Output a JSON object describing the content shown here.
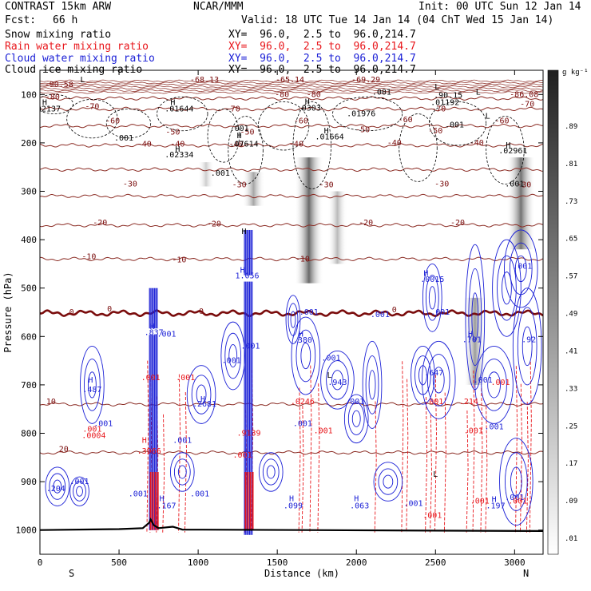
{
  "header": {
    "model": "CONTRAST 15km ARW",
    "center": "NCAR/MMM",
    "init": "Init: 00 UTC Sun 12 Jan 14",
    "fcst_label": "Fcst:",
    "fcst_value": "66 h",
    "valid": "Valid: 18 UTC Tue 14 Jan 14 (04 ChT Wed 15 Jan 14)"
  },
  "fields": [
    {
      "name": "Snow mixing ratio",
      "xy": "XY=  96.0,  2.5 to  96.0,214.7",
      "color": "#000000"
    },
    {
      "name": "Rain water mixing ratio",
      "xy": "XY=  96.0,  2.5 to  96.0,214.7",
      "color": "#e8161b"
    },
    {
      "name": "Cloud water mixing ratio",
      "xy": "XY=  96.0,  2.5 to  96.0,214.7",
      "color": "#1a1fd6"
    },
    {
      "name": "Cloud ice mixing ratio",
      "xy": "XY=  96.0,  2.5 to  96.0,214.7",
      "color": "#000000"
    }
  ],
  "chart_data": {
    "type": "heatmap",
    "xlabel": "Distance (km)",
    "ylabel": "Pressure (hPa)",
    "xlim": [
      0,
      3180
    ],
    "ylim": [
      1050,
      50
    ],
    "y_inverted": true,
    "x_ticks": [
      0,
      500,
      1000,
      1500,
      2000,
      2500,
      3000
    ],
    "y_ticks": [
      100,
      200,
      300,
      400,
      500,
      600,
      700,
      800,
      900,
      1000
    ],
    "x_end_labels": {
      "left": "S",
      "right": "N"
    },
    "colorbar": {
      "unit": "g kg⁻¹",
      "levels": [
        ".01",
        ".09",
        ".17",
        ".25",
        ".33",
        ".41",
        ".49",
        ".57",
        ".65",
        ".73",
        ".81",
        ".89"
      ]
    },
    "temperature_contours": [
      {
        "value": 20,
        "pressure": 840
      },
      {
        "value": 10,
        "pressure": 740
      },
      {
        "value": 0,
        "pressure": 552
      },
      {
        "value": -10,
        "pressure": 440
      },
      {
        "value": -20,
        "pressure": 370
      },
      {
        "value": -30,
        "pressure": 310
      },
      {
        "value": -40,
        "pressure": 255
      },
      {
        "value": -50,
        "pressure": 205
      },
      {
        "value": -60,
        "pressure": 165
      },
      {
        "value": -70,
        "pressure": 130
      },
      {
        "value": -80,
        "pressure": 108
      }
    ],
    "temperature_labels": [
      {
        "text": "-90.58",
        "x": 120,
        "p": 85
      },
      {
        "text": "-68.13",
        "x": 1040,
        "p": 75
      },
      {
        "text": "-65.14",
        "x": 1580,
        "p": 75
      },
      {
        "text": "-69.29",
        "x": 2060,
        "p": 75
      },
      {
        "text": "-86.08",
        "x": 3060,
        "p": 105
      },
      {
        "text": "-80",
        "x": 80,
        "p": 110
      },
      {
        "text": "-70",
        "x": 330,
        "p": 130
      },
      {
        "text": "-70",
        "x": 1220,
        "p": 135
      },
      {
        "text": "-70",
        "x": 2520,
        "p": 135
      },
      {
        "text": "-70",
        "x": 3080,
        "p": 125
      },
      {
        "text": "-80",
        "x": 1530,
        "p": 105
      },
      {
        "text": "-80",
        "x": 1730,
        "p": 105
      },
      {
        "text": "-60",
        "x": 460,
        "p": 160
      },
      {
        "text": "-60",
        "x": 1650,
        "p": 160
      },
      {
        "text": "-60",
        "x": 2310,
        "p": 157
      },
      {
        "text": "-60",
        "x": 2920,
        "p": 160
      },
      {
        "text": "-50",
        "x": 840,
        "p": 183
      },
      {
        "text": "-50",
        "x": 1310,
        "p": 183
      },
      {
        "text": "-50",
        "x": 2040,
        "p": 178
      },
      {
        "text": "-50",
        "x": 2500,
        "p": 180
      },
      {
        "text": "-40",
        "x": 660,
        "p": 208
      },
      {
        "text": "-40",
        "x": 1240,
        "p": 208
      },
      {
        "text": "-40",
        "x": 1620,
        "p": 208
      },
      {
        "text": "-40",
        "x": 2240,
        "p": 205
      },
      {
        "text": "-40",
        "x": 2760,
        "p": 205
      },
      {
        "text": "-40",
        "x": 870,
        "p": 208
      },
      {
        "text": "-30",
        "x": 570,
        "p": 290
      },
      {
        "text": "-30",
        "x": 1260,
        "p": 292
      },
      {
        "text": "-30",
        "x": 1810,
        "p": 292
      },
      {
        "text": "-30",
        "x": 2540,
        "p": 290
      },
      {
        "text": "-30",
        "x": 3060,
        "p": 292
      },
      {
        "text": "-20",
        "x": 380,
        "p": 370
      },
      {
        "text": "-20",
        "x": 1100,
        "p": 373
      },
      {
        "text": "-20",
        "x": 2060,
        "p": 370
      },
      {
        "text": "-20",
        "x": 2640,
        "p": 370
      },
      {
        "text": "-10",
        "x": 310,
        "p": 440
      },
      {
        "text": "-10",
        "x": 880,
        "p": 447
      },
      {
        "text": "-10",
        "x": 1660,
        "p": 445
      },
      {
        "text": "0",
        "x": 200,
        "p": 555
      },
      {
        "text": "0",
        "x": 440,
        "p": 548
      },
      {
        "text": "0",
        "x": 1020,
        "p": 553
      },
      {
        "text": "0",
        "x": 2240,
        "p": 550
      },
      {
        "text": "10",
        "x": 70,
        "p": 740
      },
      {
        "text": "20",
        "x": 150,
        "p": 838
      }
    ],
    "cloud_water_labels": [
      {
        "text": "H",
        "x": 710,
        "p": 585
      },
      {
        "text": ".837",
        "x": 720,
        "p": 597
      },
      {
        "text": ".001",
        "x": 800,
        "p": 600
      },
      {
        "text": "H",
        "x": 1280,
        "p": 468
      },
      {
        "text": "1.056",
        "x": 1310,
        "p": 480
      },
      {
        "text": ".001",
        "x": 1210,
        "p": 655
      },
      {
        "text": "H",
        "x": 1650,
        "p": 600
      },
      {
        "text": ".380",
        "x": 1660,
        "p": 613
      },
      {
        "text": ".001",
        "x": 1700,
        "p": 555
      },
      {
        "text": ".943",
        "x": 1880,
        "p": 700
      },
      {
        "text": ".001",
        "x": 1990,
        "p": 740
      },
      {
        "text": "H",
        "x": 2440,
        "p": 475
      },
      {
        "text": ".0015",
        "x": 2480,
        "p": 487
      },
      {
        "text": ".001",
        "x": 2530,
        "p": 555
      },
      {
        "text": ".647",
        "x": 2490,
        "p": 680
      },
      {
        "text": "H",
        "x": 2720,
        "p": 600
      },
      {
        "text": ".701",
        "x": 2730,
        "p": 612
      },
      {
        "text": ".001",
        "x": 2800,
        "p": 695
      },
      {
        "text": ".001",
        "x": 2870,
        "p": 792
      },
      {
        "text": ".001",
        "x": 3050,
        "p": 460
      },
      {
        "text": ".92",
        "x": 3090,
        "p": 612
      },
      {
        "text": "H",
        "x": 320,
        "p": 695
      },
      {
        "text": ".487",
        "x": 330,
        "p": 715
      },
      {
        "text": "H",
        "x": 1030,
        "p": 735
      },
      {
        "text": ".2681",
        "x": 1040,
        "p": 745
      },
      {
        "text": ".001",
        "x": 400,
        "p": 785
      },
      {
        "text": ".001",
        "x": 900,
        "p": 820
      },
      {
        "text": ".001",
        "x": 1330,
        "p": 625
      },
      {
        "text": ".001",
        "x": 2150,
        "p": 560
      },
      {
        "text": ".001",
        "x": 1660,
        "p": 785
      },
      {
        "text": ".001",
        "x": 1840,
        "p": 650
      },
      {
        "text": ".001",
        "x": 2360,
        "p": 950
      },
      {
        "text": ".204",
        "x": 100,
        "p": 920
      },
      {
        "text": ".001",
        "x": 250,
        "p": 905
      },
      {
        "text": ".001",
        "x": 620,
        "p": 930
      },
      {
        "text": ".001",
        "x": 1010,
        "p": 930
      },
      {
        "text": "H",
        "x": 770,
        "p": 940
      },
      {
        "text": ".167",
        "x": 800,
        "p": 955
      },
      {
        "text": "H",
        "x": 1590,
        "p": 940
      },
      {
        "text": ".099",
        "x": 1600,
        "p": 955
      },
      {
        "text": "H",
        "x": 2000,
        "p": 940
      },
      {
        "text": ".063",
        "x": 2020,
        "p": 955
      },
      {
        "text": "H",
        "x": 2870,
        "p": 942
      },
      {
        "text": ".197",
        "x": 2880,
        "p": 955
      },
      {
        "text": ".001",
        "x": 3000,
        "p": 938
      }
    ],
    "rain_labels": [
      {
        "text": ".001",
        "x": 700,
        "p": 690
      },
      {
        "text": ".001",
        "x": 920,
        "p": 690
      },
      {
        "text": "H",
        "x": 660,
        "p": 820
      },
      {
        "text": ".3966",
        "x": 690,
        "p": 842
      },
      {
        "text": ".001",
        "x": 330,
        "p": 797
      },
      {
        "text": ".0004",
        "x": 340,
        "p": 810
      },
      {
        "text": ".9139",
        "x": 1320,
        "p": 805
      },
      {
        "text": ".001",
        "x": 1280,
        "p": 850
      },
      {
        "text": ".0246",
        "x": 1660,
        "p": 740
      },
      {
        "text": ".001",
        "x": 1790,
        "p": 800
      },
      {
        "text": ".001",
        "x": 2490,
        "p": 740
      },
      {
        "text": ".214",
        "x": 2710,
        "p": 740
      },
      {
        "text": ".001",
        "x": 2740,
        "p": 800
      },
      {
        "text": ".001",
        "x": 2780,
        "p": 945
      },
      {
        "text": ".001",
        "x": 3020,
        "p": 945
      },
      {
        "text": ".001",
        "x": 2480,
        "p": 975
      },
      {
        "text": ".001",
        "x": 2910,
        "p": 700
      }
    ],
    "snow_ice_labels": [
      {
        "text": "L",
        "x": 270,
        "p": 75
      },
      {
        "text": "H",
        "x": 30,
        "p": 122
      },
      {
        "text": ".02137",
        "x": 40,
        "p": 135
      },
      {
        "text": "H",
        "x": 840,
        "p": 122
      },
      {
        "text": ".01644",
        "x": 880,
        "p": 135
      },
      {
        "text": ".001",
        "x": 1260,
        "p": 175
      },
      {
        "text": ".001",
        "x": 530,
        "p": 195
      },
      {
        "text": "H",
        "x": 1260,
        "p": 190
      },
      {
        "text": ".07614",
        "x": 1290,
        "p": 208
      },
      {
        "text": "H",
        "x": 870,
        "p": 218
      },
      {
        "text": ".02334",
        "x": 880,
        "p": 230
      },
      {
        "text": ".001",
        "x": 1140,
        "p": 268
      },
      {
        "text": "H",
        "x": 1690,
        "p": 120
      },
      {
        "text": ".0303",
        "x": 1700,
        "p": 133
      },
      {
        "text": ".01976",
        "x": 2030,
        "p": 145
      },
      {
        "text": ".001",
        "x": 2160,
        "p": 100
      },
      {
        "text": "H",
        "x": 1810,
        "p": 180
      },
      {
        "text": ".01664",
        "x": 1830,
        "p": 193
      },
      {
        "text": "L",
        "x": 2510,
        "p": 90
      },
      {
        "text": ".90.15",
        "x": 2580,
        "p": 107
      },
      {
        "text": ".01192",
        "x": 2560,
        "p": 122
      },
      {
        "text": ".001",
        "x": 2620,
        "p": 168
      },
      {
        "text": "L",
        "x": 2770,
        "p": 100
      },
      {
        "text": "L",
        "x": 2830,
        "p": 150
      },
      {
        "text": "H",
        "x": 2960,
        "p": 210
      },
      {
        "text": ".02961",
        "x": 2990,
        "p": 222
      },
      {
        "text": ".001",
        "x": 3000,
        "p": 290
      },
      {
        "text": "H",
        "x": 1290,
        "p": 388
      },
      {
        "text": "L",
        "x": 2500,
        "p": 890
      },
      {
        "text": "L",
        "x": 1830,
        "p": 685
      }
    ],
    "snow_shading": [
      {
        "x": 1700,
        "p_top": 230,
        "p_bottom": 490,
        "intensity": 0.75,
        "halfwidth": 18
      },
      {
        "x": 1350,
        "p_top": 260,
        "p_bottom": 330,
        "intensity": 0.45,
        "halfwidth": 14
      },
      {
        "x": 1880,
        "p_top": 300,
        "p_bottom": 450,
        "intensity": 0.35,
        "halfwidth": 12
      },
      {
        "x": 3040,
        "p_top": 230,
        "p_bottom": 420,
        "intensity": 0.7,
        "halfwidth": 18
      },
      {
        "x": 2750,
        "p_top": 520,
        "p_bottom": 700,
        "intensity": 0.5,
        "halfwidth": 14
      },
      {
        "x": 1050,
        "p_top": 240,
        "p_bottom": 290,
        "intensity": 0.25,
        "halfwidth": 10
      }
    ],
    "convective_columns": [
      {
        "x": 720,
        "p_top": 500,
        "p_bottom": 1000,
        "peak_p": 590
      },
      {
        "x": 1320,
        "p_top": 380,
        "p_bottom": 1010,
        "peak_p": 480
      }
    ],
    "terrain": [
      [
        0,
        1000
      ],
      [
        500,
        998
      ],
      [
        650,
        996
      ],
      [
        690,
        985
      ],
      [
        700,
        978
      ],
      [
        720,
        990
      ],
      [
        750,
        996
      ],
      [
        840,
        993
      ],
      [
        900,
        999
      ],
      [
        3180,
        1002
      ]
    ]
  }
}
